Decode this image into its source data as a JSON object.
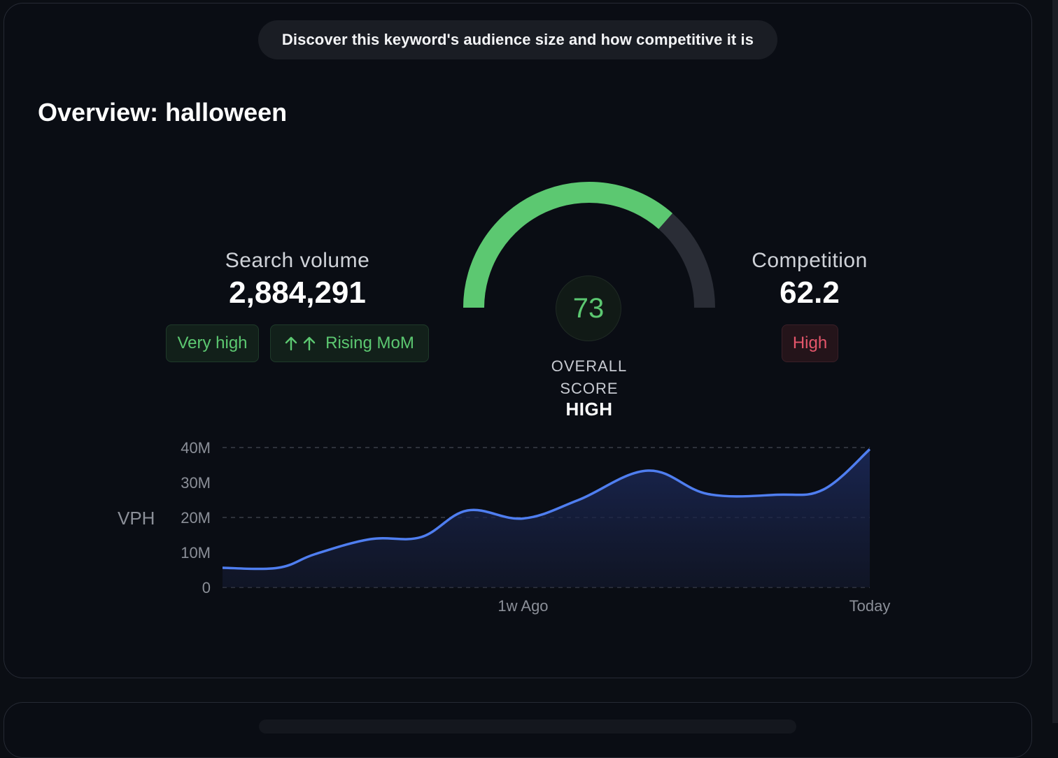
{
  "banner": {
    "text": "Discover this keyword's audience size and how competitive it is"
  },
  "overview": {
    "title": "Overview: halloween"
  },
  "search_volume": {
    "label": "Search volume",
    "value": "2,884,291",
    "badges": [
      "Very high",
      "Rising MoM"
    ],
    "trend_icon": "double-arrow-up-icon"
  },
  "competition": {
    "label": "Competition",
    "value": "62.2",
    "badge": "High"
  },
  "overall_score": {
    "value": "73",
    "score_numeric": 73,
    "label_line1": "OVERALL",
    "label_line2": "SCORE",
    "rating": "HIGH"
  },
  "colors": {
    "accent_green": "#5cc871",
    "accent_red": "#e4566b",
    "line_blue": "#4f7ef0",
    "gauge_track": "#2a2d36"
  },
  "chart_data": {
    "type": "area",
    "ylabel": "VPH",
    "ylim": [
      0,
      40000000
    ],
    "y_ticks": [
      {
        "value": 40000000,
        "label": "40M"
      },
      {
        "value": 30000000,
        "label": "30M"
      },
      {
        "value": 20000000,
        "label": "20M"
      },
      {
        "value": 10000000,
        "label": "10M"
      },
      {
        "value": 0,
        "label": "0"
      }
    ],
    "x_ticks": [
      {
        "day": 6.5,
        "label": "1w Ago"
      },
      {
        "day": 14,
        "label": "Today"
      }
    ],
    "x_range": [
      0,
      14
    ],
    "series": [
      {
        "name": "VPH",
        "points": [
          [
            0,
            5600000
          ],
          [
            1.2,
            5600000
          ],
          [
            2,
            9500000
          ],
          [
            3.2,
            13800000
          ],
          [
            4.3,
            14400000
          ],
          [
            5.3,
            22000000
          ],
          [
            6.5,
            19700000
          ],
          [
            7.7,
            25000000
          ],
          [
            9.2,
            33400000
          ],
          [
            10.5,
            26700000
          ],
          [
            12,
            26500000
          ],
          [
            13,
            28000000
          ],
          [
            14,
            39500000
          ]
        ]
      }
    ],
    "gridlines": [
      0,
      20000000,
      40000000
    ]
  }
}
